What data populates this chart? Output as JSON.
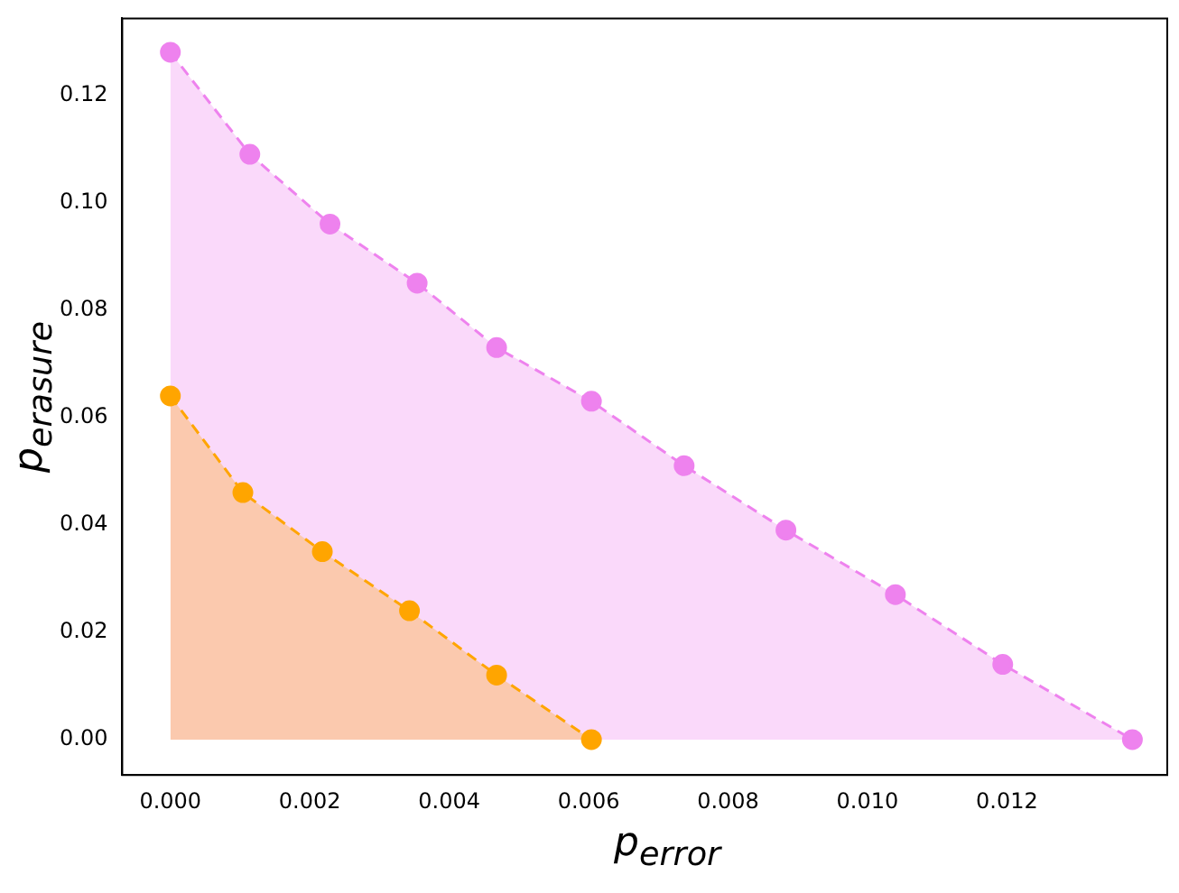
{
  "chart_data": {
    "type": "area",
    "xlabel": "p$_{error}$",
    "ylabel": "p$_{erasure}$",
    "xlim": [
      -0.00069,
      0.0143
    ],
    "ylim": [
      -0.0066,
      0.1343
    ],
    "xticks": [
      {
        "value": 0,
        "label": "0.000"
      },
      {
        "value": 0.002,
        "label": "0.002"
      },
      {
        "value": 0.004,
        "label": "0.004"
      },
      {
        "value": 0.006,
        "label": "0.006"
      },
      {
        "value": 0.008,
        "label": "0.008"
      },
      {
        "value": 0.01,
        "label": "0.010"
      },
      {
        "value": 0.012,
        "label": "0.012"
      }
    ],
    "yticks": [
      {
        "value": 0,
        "label": "0.00"
      },
      {
        "value": 0.02,
        "label": "0.02"
      },
      {
        "value": 0.04,
        "label": "0.04"
      },
      {
        "value": 0.06,
        "label": "0.06"
      },
      {
        "value": 0.08,
        "label": "0.08"
      },
      {
        "value": 0.1,
        "label": "0.10"
      },
      {
        "value": 0.12,
        "label": "0.12"
      }
    ],
    "grid": false,
    "legend": false,
    "marker": "circle",
    "line_style": "dashed",
    "series": [
      {
        "color": "#ee82ee",
        "x": [
          0,
          0.00114,
          0.00229,
          0.00354,
          0.00468,
          0.00604,
          0.00737,
          0.00883,
          0.0104,
          0.01194,
          0.0138
        ],
        "values": [
          0.128,
          0.109,
          0.096,
          0.085,
          0.073,
          0.063,
          0.051,
          0.039,
          0.027,
          0.014,
          0
        ]
      },
      {
        "color": "#ffa500",
        "x": [
          0,
          0.00104,
          0.00218,
          0.00343,
          0.00468,
          0.00604
        ],
        "values": [
          0.064,
          0.046,
          0.035,
          0.024,
          0.012,
          0
        ]
      }
    ]
  }
}
